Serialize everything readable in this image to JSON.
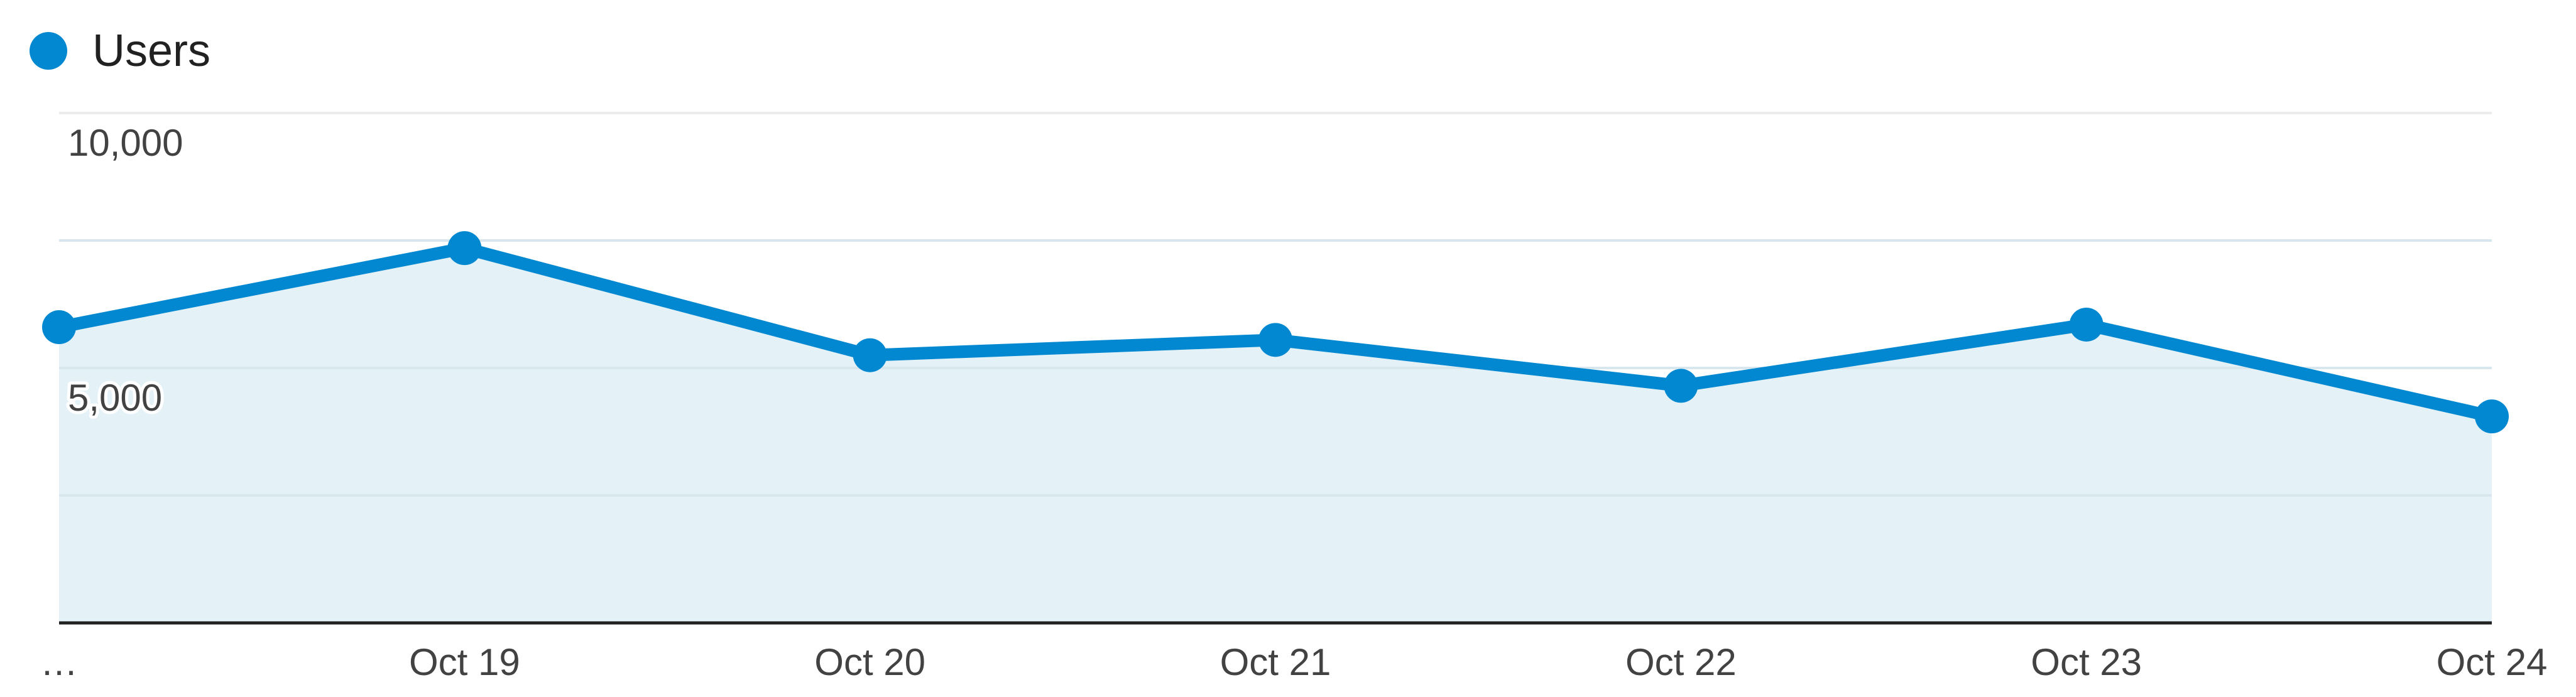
{
  "legend": {
    "label": "Users",
    "color": "#0288D1"
  },
  "chart_data": {
    "type": "area",
    "title": "",
    "xlabel": "",
    "ylabel": "",
    "categories": [
      "…",
      "Oct 19",
      "Oct 20",
      "Oct 21",
      "Oct 22",
      "Oct 23",
      "Oct 24"
    ],
    "series": [
      {
        "name": "Users",
        "color": "#0288D1",
        "fill": "#E4F2F8",
        "values": [
          5800,
          7350,
          5250,
          5550,
          4650,
          5850,
          4050
        ]
      }
    ],
    "ylim": [
      0,
      10000
    ],
    "y_ticks": [
      5000,
      10000
    ],
    "y_tick_labels": [
      "5,000",
      "10,000"
    ],
    "grid": true,
    "legend_position": "top-left"
  }
}
